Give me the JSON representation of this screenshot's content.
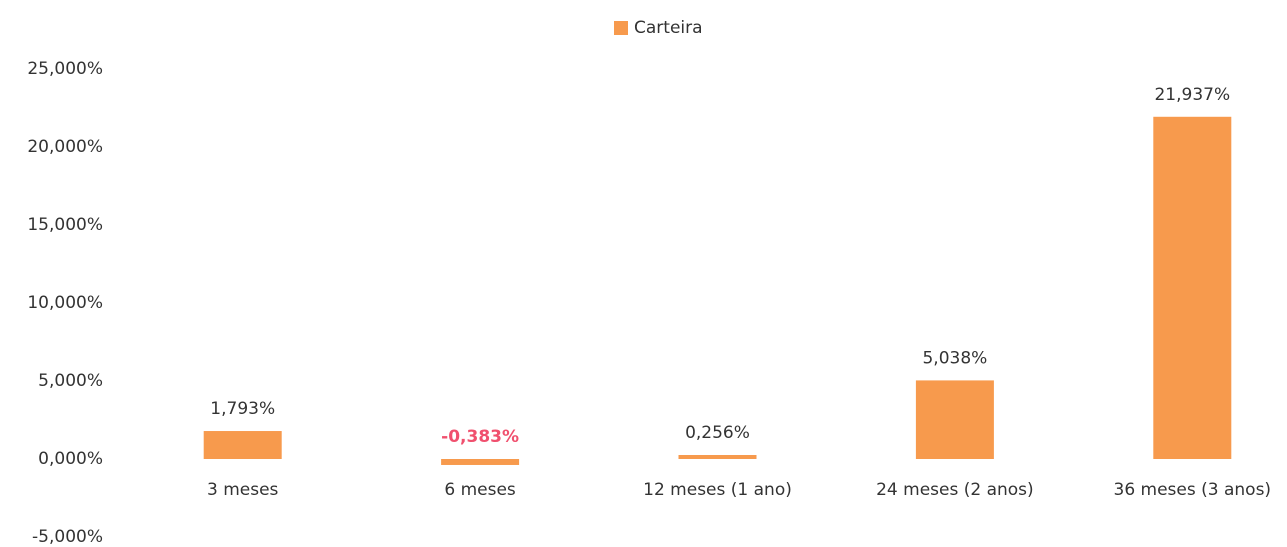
{
  "chart_data": {
    "type": "bar",
    "legend": {
      "name": "Carteira",
      "position": "top"
    },
    "categories": [
      "3 meses",
      "6 meses",
      "12 meses (1 ano)",
      "24 meses (2 anos)",
      "36 meses (3 anos)"
    ],
    "values": [
      1.793,
      -0.383,
      0.256,
      5.038,
      21.937
    ],
    "value_labels": [
      "1,793%",
      "-0,383%",
      "0,256%",
      "5,038%",
      "21,937%"
    ],
    "color": "#f79a4d",
    "negative_label_color": "#f0506e",
    "ylim": [
      -5,
      25
    ],
    "yticks": [
      {
        "value": -5,
        "label": "-5,000%"
      },
      {
        "value": 0,
        "label": "0,000%"
      },
      {
        "value": 5,
        "label": "5,000%"
      },
      {
        "value": 10,
        "label": "10,000%"
      },
      {
        "value": 15,
        "label": "15,000%"
      },
      {
        "value": 20,
        "label": "20,000%"
      },
      {
        "value": 25,
        "label": "25,000%"
      }
    ],
    "grid": false
  }
}
